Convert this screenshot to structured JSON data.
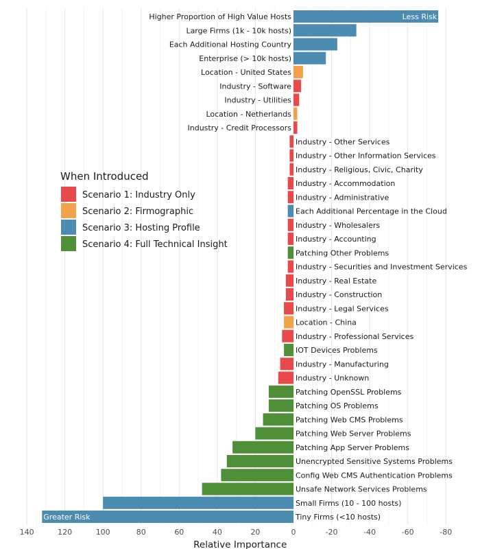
{
  "chart_data": {
    "type": "bar",
    "orientation": "horizontal",
    "xlabel": "Relative Importance",
    "x_reversed": true,
    "xlim": [
      144,
      -88
    ],
    "xticks": [
      140,
      120,
      100,
      80,
      60,
      40,
      20,
      0,
      -20,
      -40,
      -60,
      -80
    ],
    "grid": true,
    "legend": {
      "title": "When Introduced",
      "placement": "left",
      "entries": [
        {
          "name": "Scenario 1: Industry Only",
          "color": "#E8494A"
        },
        {
          "name": "Scenario 2: Firmographic",
          "color": "#F2A34A"
        },
        {
          "name": "Scenario 3: Hosting Profile",
          "color": "#4D8CB1"
        },
        {
          "name": "Scenario 4: Full Technical Insight",
          "color": "#4E8F37"
        }
      ]
    },
    "annotations": [
      {
        "text": "Less Risk",
        "anchor": "Higher Proportion of High Value Hosts"
      },
      {
        "text": "Greater Risk",
        "anchor": "Tiny Firms (<10 hosts)"
      }
    ],
    "bars": [
      {
        "label": "Higher Proportion of High Value Hosts",
        "value": -76,
        "scenario": 3
      },
      {
        "label": "Large Firms (1k - 10k hosts)",
        "value": -33,
        "scenario": 3
      },
      {
        "label": "Each Additional Hosting Country",
        "value": -23,
        "scenario": 3
      },
      {
        "label": "Enterprise (> 10k hosts)",
        "value": -17,
        "scenario": 3
      },
      {
        "label": "Location - United States",
        "value": -5,
        "scenario": 2
      },
      {
        "label": "Industry - Software",
        "value": -4,
        "scenario": 1
      },
      {
        "label": "Industry - Utilities",
        "value": -3,
        "scenario": 1
      },
      {
        "label": "Location - Netherlands",
        "value": -2,
        "scenario": 2
      },
      {
        "label": "Industry - Credit Processors",
        "value": -2,
        "scenario": 1
      },
      {
        "label": "Industry - Other Services",
        "value": 2,
        "scenario": 1
      },
      {
        "label": "Industry - Other Information Services",
        "value": 2,
        "scenario": 1
      },
      {
        "label": "Industry - Religious, Civic, Charity",
        "value": 2,
        "scenario": 1
      },
      {
        "label": "Industry - Accommodation",
        "value": 3,
        "scenario": 1
      },
      {
        "label": "Industry - Administrative",
        "value": 3,
        "scenario": 1
      },
      {
        "label": "Each Additional Percentage in the Cloud",
        "value": 3,
        "scenario": 3
      },
      {
        "label": "Industry - Wholesalers",
        "value": 3,
        "scenario": 1
      },
      {
        "label": "Industry - Accounting",
        "value": 3,
        "scenario": 1
      },
      {
        "label": "Patching Other Problems",
        "value": 3,
        "scenario": 4
      },
      {
        "label": "Industry - Securities and Investment Services",
        "value": 3,
        "scenario": 1
      },
      {
        "label": "Industry - Real Estate",
        "value": 4,
        "scenario": 1
      },
      {
        "label": "Industry - Construction",
        "value": 4,
        "scenario": 1
      },
      {
        "label": "Industry - Legal Services",
        "value": 5,
        "scenario": 1
      },
      {
        "label": "Location - China",
        "value": 5,
        "scenario": 2
      },
      {
        "label": "Industry - Professional Services",
        "value": 6,
        "scenario": 1
      },
      {
        "label": "IOT Devices Problems",
        "value": 5,
        "scenario": 4
      },
      {
        "label": "Industry - Manufacturing",
        "value": 7,
        "scenario": 1
      },
      {
        "label": "Industry - Unknown",
        "value": 8,
        "scenario": 1
      },
      {
        "label": "Patching OpenSSL Problems",
        "value": 13,
        "scenario": 4
      },
      {
        "label": "Patching OS Problems",
        "value": 13,
        "scenario": 4
      },
      {
        "label": "Patching Web CMS Problems",
        "value": 16,
        "scenario": 4
      },
      {
        "label": "Patching Web Server Problems",
        "value": 20,
        "scenario": 4
      },
      {
        "label": "Patching App Server Problems",
        "value": 32,
        "scenario": 4
      },
      {
        "label": "Unencrypted Sensitive Systems Problems",
        "value": 35,
        "scenario": 4
      },
      {
        "label": "Config Web CMS Authentication Problems",
        "value": 38,
        "scenario": 4
      },
      {
        "label": "Unsafe Network Services Problems",
        "value": 48,
        "scenario": 4
      },
      {
        "label": "Small Firms (10 - 100 hosts)",
        "value": 100,
        "scenario": 3
      },
      {
        "label": "Tiny Firms (<10 hosts)",
        "value": 132,
        "scenario": 3
      }
    ]
  }
}
